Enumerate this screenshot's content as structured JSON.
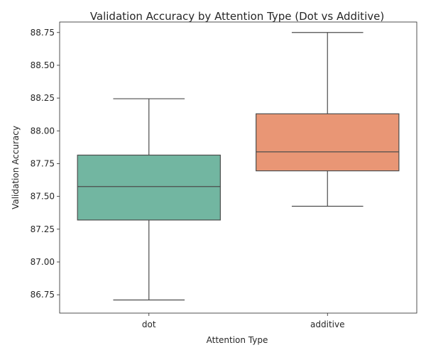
{
  "chart_data": {
    "type": "box",
    "title": "Validation Accuracy by Attention Type (Dot vs Additive)",
    "xlabel": "Attention Type",
    "ylabel": "Validation Accuracy",
    "categories": [
      "dot",
      "additive"
    ],
    "yticks": [
      86.75,
      87.0,
      87.25,
      87.5,
      87.75,
      88.0,
      88.25,
      88.5,
      88.75
    ],
    "ytick_labels": [
      "86.75",
      "87.00",
      "87.25",
      "87.50",
      "87.75",
      "88.00",
      "88.25",
      "88.50",
      "88.75"
    ],
    "ylim": [
      86.61,
      88.83
    ],
    "grid": false,
    "boxes": [
      {
        "category": "dot",
        "whisker_low": 86.71,
        "q1": 87.32,
        "median": 87.575,
        "q3": 87.815,
        "whisker_high": 88.245,
        "color": "#72b6a1"
      },
      {
        "category": "additive",
        "whisker_low": 87.425,
        "q1": 87.695,
        "median": 87.84,
        "q3": 88.13,
        "whisker_high": 88.75,
        "color": "#e99675"
      }
    ],
    "line_color": "#4d4d4d"
  }
}
